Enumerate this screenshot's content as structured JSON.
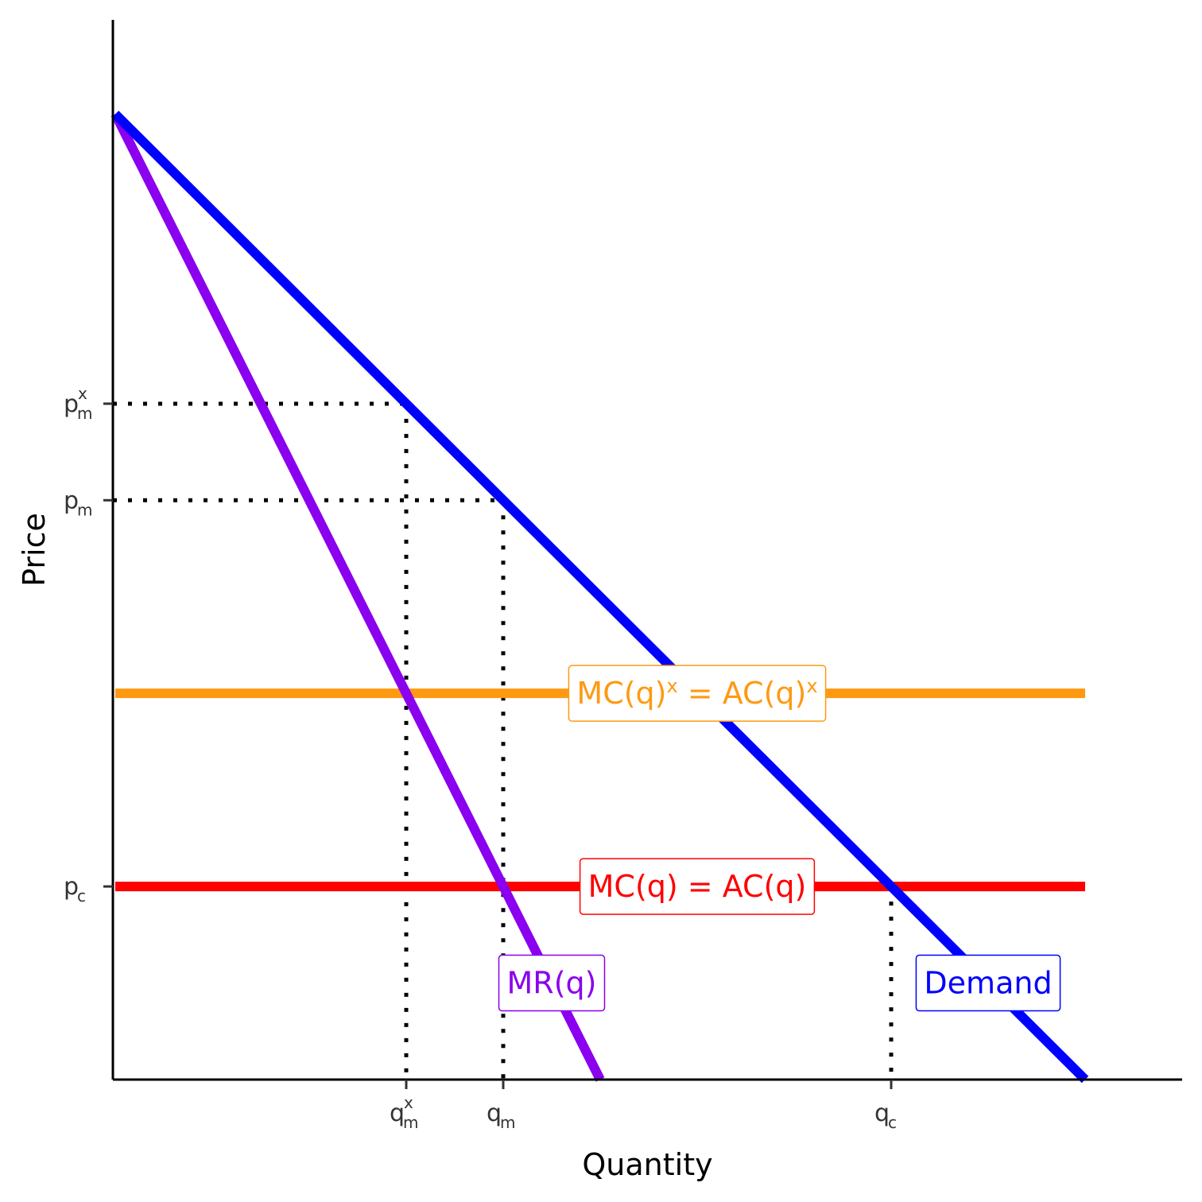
{
  "chart_data": {
    "type": "line",
    "title": "",
    "xlabel": "Quantity",
    "ylabel": "Price",
    "xlim": [
      0,
      10
    ],
    "ylim": [
      0,
      11
    ],
    "grid": false,
    "legend": "none",
    "colors": {
      "demand": "#0000ff",
      "mr": "#8b00ee",
      "mc": "#ff0000",
      "mcx": "#ff9912",
      "guide": "#000000",
      "axis": "#000000"
    },
    "series": [
      {
        "name": "Demand",
        "color": "#0000ff",
        "points": [
          [
            0,
            10
          ],
          [
            10,
            0
          ]
        ]
      },
      {
        "name": "MR(q)",
        "color": "#8b00ee",
        "points": [
          [
            0,
            10
          ],
          [
            5,
            0
          ]
        ]
      },
      {
        "name": "MC(q) = AC(q)",
        "color": "#ff0000",
        "points": [
          [
            0,
            2
          ],
          [
            10,
            2
          ]
        ]
      },
      {
        "name": "MC(q)^x = AC(q)^x",
        "color": "#ff9912",
        "points": [
          [
            0,
            4
          ],
          [
            10,
            4
          ]
        ]
      }
    ],
    "x_ticks": [
      {
        "value": 3,
        "main": "q",
        "sub": "m",
        "sup": "x"
      },
      {
        "value": 4,
        "main": "q",
        "sub": "m",
        "sup": ""
      },
      {
        "value": 8,
        "main": "q",
        "sub": "c",
        "sup": ""
      }
    ],
    "y_ticks": [
      {
        "value": 7,
        "main": "p",
        "sub": "m",
        "sup": "x"
      },
      {
        "value": 6,
        "main": "p",
        "sub": "m",
        "sup": ""
      },
      {
        "value": 2,
        "main": "p",
        "sub": "c",
        "sup": ""
      }
    ],
    "guides": [
      {
        "from": [
          0,
          7
        ],
        "to": [
          3,
          7
        ]
      },
      {
        "from": [
          3,
          7
        ],
        "to": [
          3,
          0
        ]
      },
      {
        "from": [
          0,
          6
        ],
        "to": [
          4,
          6
        ]
      },
      {
        "from": [
          4,
          6
        ],
        "to": [
          4,
          0
        ]
      },
      {
        "from": [
          8,
          2
        ],
        "to": [
          8,
          0
        ]
      }
    ],
    "annotations": [
      {
        "id": "mcx",
        "color": "#ff9912",
        "x": 6,
        "y": 4,
        "parts": [
          {
            "t": "MC"
          },
          {
            "t": "(q)"
          },
          {
            "t": "x",
            "sup": true
          },
          {
            "t": " = "
          },
          {
            "t": "AC"
          },
          {
            "t": "(q)"
          },
          {
            "t": "x",
            "sup": true
          }
        ]
      },
      {
        "id": "mc",
        "color": "#ff0000",
        "x": 6,
        "y": 2,
        "parts": [
          {
            "t": "MC"
          },
          {
            "t": "(q)"
          },
          {
            "t": " = "
          },
          {
            "t": "AC"
          },
          {
            "t": "(q)"
          }
        ]
      },
      {
        "id": "mr",
        "color": "#8b00ee",
        "x": 4.5,
        "y": 1,
        "parts": [
          {
            "t": "MR"
          },
          {
            "t": "(q)"
          }
        ]
      },
      {
        "id": "demand",
        "color": "#0000ff",
        "x": 9,
        "y": 1,
        "parts": [
          {
            "t": "Demand"
          }
        ]
      }
    ]
  }
}
